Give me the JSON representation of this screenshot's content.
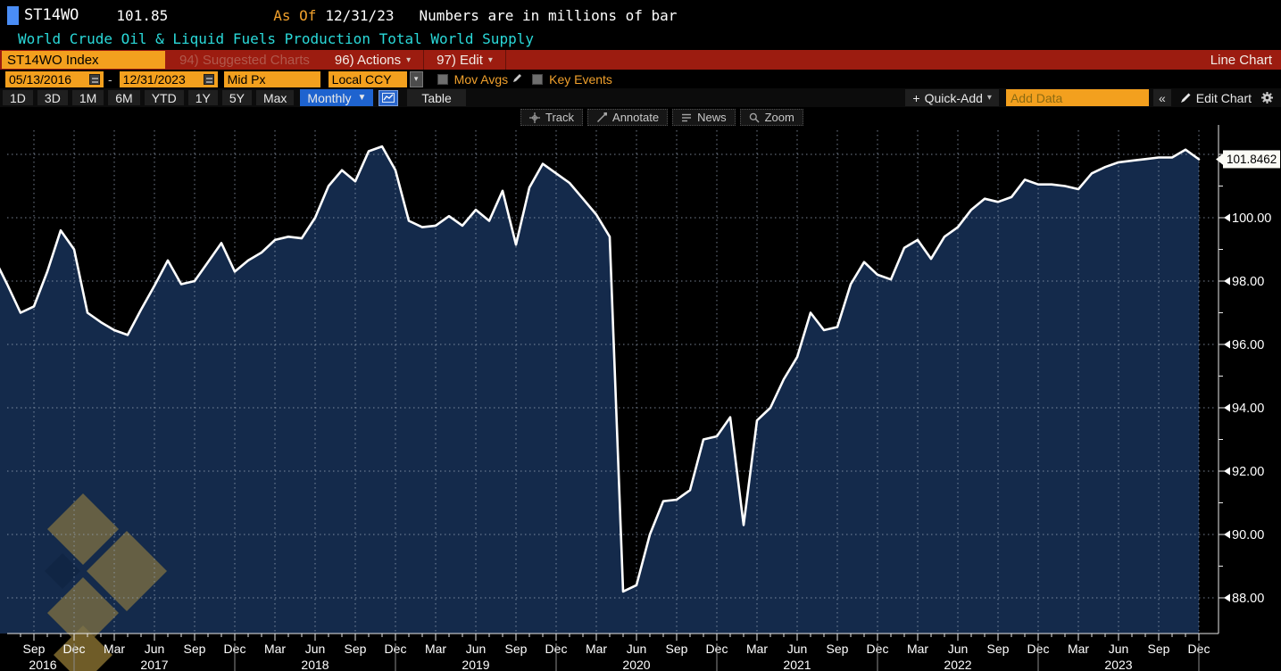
{
  "header": {
    "ticker": "ST14WO",
    "last_price": "101.85",
    "as_of_label": "As Of",
    "as_of_date": "12/31/23",
    "note": "Numbers are in millions of bar",
    "subtitle": "World Crude Oil & Liquid Fuels Production Total World Supply"
  },
  "redbar": {
    "security_field": "ST14WO Index",
    "suggested_charts": "94) Suggested Charts",
    "actions": "96) Actions",
    "edit": "97) Edit",
    "chart_type": "Line Chart"
  },
  "fieldbar": {
    "start_date": "05/13/2016",
    "range_separator": "-",
    "end_date": "12/31/2023",
    "price_field": "Mid Px",
    "currency": "Local CCY",
    "mov_avgs_label": "Mov Avgs",
    "key_events_label": "Key Events"
  },
  "rangebar": {
    "ranges": [
      "1D",
      "3D",
      "1M",
      "6M",
      "YTD",
      "1Y",
      "5Y",
      "Max"
    ],
    "period": "Monthly",
    "table_label": "Table",
    "quick_add": "Quick-Add",
    "add_data_placeholder": "Add Data",
    "edit_chart": "Edit Chart"
  },
  "chart_toolbar": {
    "track": "Track",
    "annotate": "Annotate",
    "news": "News",
    "zoom": "Zoom"
  },
  "icons": {
    "dropdown_arrow": "▾",
    "dropdown_arrow_solid": "▼",
    "plus": "+",
    "double_chevron": "«"
  },
  "chart_data": {
    "type": "line",
    "title": "World Crude Oil & Liquid Fuels Production Total World Supply",
    "series_name": "ST14WO Index",
    "frequency": "Monthly",
    "grid": true,
    "legend_position": "none",
    "line_color": "#ffffff",
    "fill_color": "#142a4b",
    "background": "#000000",
    "ylim": [
      86.9,
      102.9
    ],
    "y_ticks": [
      88,
      90,
      92,
      94,
      96,
      98,
      100,
      102
    ],
    "y_tick_labels_shown": [
      "88.00",
      "90.00",
      "92.00",
      "94.00",
      "96.00",
      "98.00",
      "100.00"
    ],
    "last_price_tag": "101.8462",
    "quarter_month_labels": [
      "Mar",
      "Jun",
      "Sep",
      "Dec"
    ],
    "years": [
      "2016",
      "2017",
      "2018",
      "2019",
      "2020",
      "2021",
      "2022",
      "2023"
    ],
    "months": [
      "2016-05",
      "2016-06",
      "2016-07",
      "2016-08",
      "2016-09",
      "2016-10",
      "2016-11",
      "2016-12",
      "2017-01",
      "2017-02",
      "2017-03",
      "2017-04",
      "2017-05",
      "2017-06",
      "2017-07",
      "2017-08",
      "2017-09",
      "2017-10",
      "2017-11",
      "2017-12",
      "2018-01",
      "2018-02",
      "2018-03",
      "2018-04",
      "2018-05",
      "2018-06",
      "2018-07",
      "2018-08",
      "2018-09",
      "2018-10",
      "2018-11",
      "2018-12",
      "2019-01",
      "2019-02",
      "2019-03",
      "2019-04",
      "2019-05",
      "2019-06",
      "2019-07",
      "2019-08",
      "2019-09",
      "2019-10",
      "2019-11",
      "2019-12",
      "2020-01",
      "2020-02",
      "2020-03",
      "2020-04",
      "2020-05",
      "2020-06",
      "2020-07",
      "2020-08",
      "2020-09",
      "2020-10",
      "2020-11",
      "2020-12",
      "2021-01",
      "2021-02",
      "2021-03",
      "2021-04",
      "2021-05",
      "2021-06",
      "2021-07",
      "2021-08",
      "2021-09",
      "2021-10",
      "2021-11",
      "2021-12",
      "2022-01",
      "2022-02",
      "2022-03",
      "2022-04",
      "2022-05",
      "2022-06",
      "2022-07",
      "2022-08",
      "2022-09",
      "2022-10",
      "2022-11",
      "2022-12",
      "2023-01",
      "2023-02",
      "2023-03",
      "2023-04",
      "2023-05",
      "2023-06",
      "2023-07",
      "2023-08",
      "2023-09",
      "2023-10",
      "2023-11",
      "2023-12"
    ],
    "values": [
      99.3,
      98.75,
      97.9,
      97.0,
      97.2,
      98.3,
      99.6,
      99.0,
      97.0,
      96.7,
      96.45,
      96.3,
      97.1,
      97.85,
      98.65,
      97.9,
      98.0,
      98.6,
      99.2,
      98.3,
      98.65,
      98.9,
      99.3,
      99.4,
      99.35,
      100.0,
      101.0,
      101.5,
      101.15,
      102.1,
      102.25,
      101.5,
      99.9,
      99.7,
      99.75,
      100.05,
      99.75,
      100.25,
      99.9,
      100.85,
      99.15,
      100.95,
      101.7,
      101.4,
      101.1,
      100.6,
      100.1,
      99.4,
      88.2,
      88.4,
      90.0,
      91.05,
      91.1,
      91.4,
      93.0,
      93.1,
      93.7,
      90.3,
      93.6,
      94.0,
      94.9,
      95.6,
      97.0,
      96.45,
      96.55,
      97.9,
      98.6,
      98.2,
      98.05,
      99.05,
      99.3,
      98.7,
      99.4,
      99.7,
      100.25,
      100.6,
      100.5,
      100.65,
      101.2,
      101.05,
      101.05,
      101.0,
      100.9,
      101.4,
      101.6,
      101.75,
      101.8,
      101.85,
      101.9,
      101.9,
      102.15,
      101.8462
    ]
  }
}
